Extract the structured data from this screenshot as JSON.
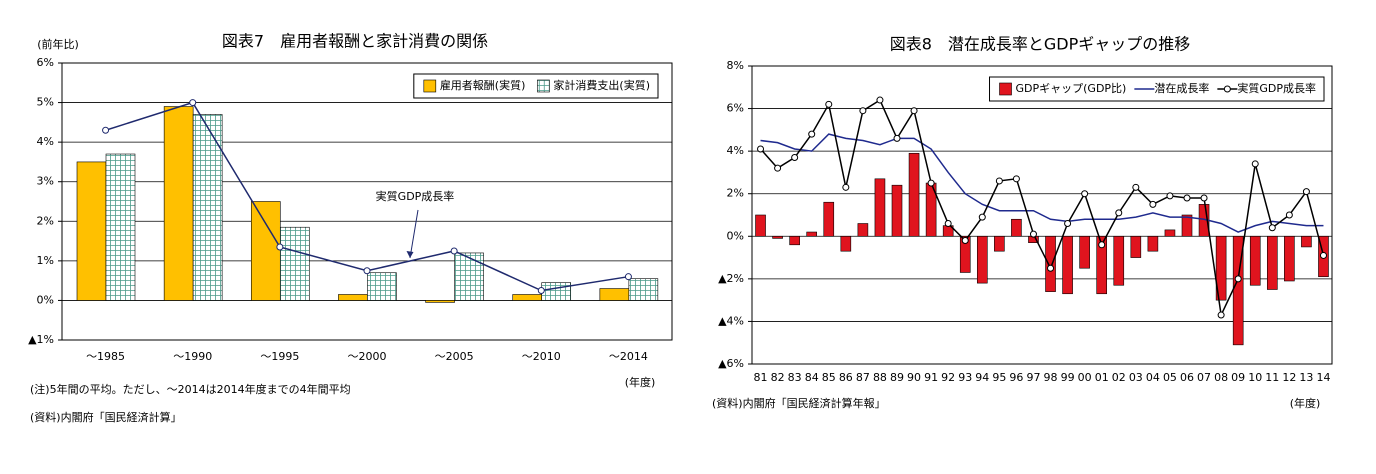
{
  "chart_data": [
    {
      "type": "bar",
      "title": "図表7　雇用者報酬と家計消費の関係",
      "y_label": "(前年比)",
      "categories": [
        "～1985",
        "～1990",
        "～1995",
        "～2000",
        "～2005",
        "～2010",
        "～2014"
      ],
      "series": [
        {
          "name": "雇用者報酬(実質)",
          "type": "bar",
          "color": "#ffc000",
          "values": [
            3.5,
            4.9,
            2.5,
            0.15,
            -0.05,
            0.15,
            0.3
          ]
        },
        {
          "name": "家計消費支出(実質)",
          "type": "bar",
          "color": "#4a9a8a",
          "pattern": "grid",
          "values": [
            3.7,
            4.7,
            1.85,
            0.7,
            1.2,
            0.45,
            0.55
          ]
        },
        {
          "name": "実質GDP成長率",
          "type": "line",
          "color": "#1f2a6e",
          "marker": true,
          "legend": false,
          "values": [
            4.3,
            5.0,
            1.35,
            0.75,
            1.25,
            0.25,
            0.6
          ]
        }
      ],
      "ylim": [
        -1,
        6
      ],
      "yticks": [
        {
          "value": -1,
          "label": "▲1%"
        },
        {
          "value": 0,
          "label": "0%"
        },
        {
          "value": 1,
          "label": "1%"
        },
        {
          "value": 2,
          "label": "2%"
        },
        {
          "value": 3,
          "label": "3%"
        },
        {
          "value": 4,
          "label": "4%"
        },
        {
          "value": 5,
          "label": "5%"
        },
        {
          "value": 6,
          "label": "6%"
        }
      ],
      "grid": true,
      "legend": "top-right",
      "notes": [
        "(注)5年間の平均。ただし、～2014は2014年度までの4年間平均",
        "(資料)内閣府「国民経済計算」"
      ],
      "x_unit": "(年度)"
    },
    {
      "type": "bar",
      "title": "図表8　潜在成長率とGDPギャップの推移",
      "categories": [
        "81",
        "82",
        "83",
        "84",
        "85",
        "86",
        "87",
        "88",
        "89",
        "90",
        "91",
        "92",
        "93",
        "94",
        "95",
        "96",
        "97",
        "98",
        "99",
        "00",
        "01",
        "02",
        "03",
        "04",
        "05",
        "06",
        "07",
        "08",
        "09",
        "10",
        "11",
        "12",
        "13",
        "14"
      ],
      "series": [
        {
          "name": "GDPギャップ(GDP比)",
          "type": "bar",
          "color": "#e0141e",
          "values": [
            1.0,
            -0.1,
            -0.4,
            0.2,
            1.6,
            -0.7,
            0.6,
            2.7,
            2.4,
            3.9,
            2.5,
            0.5,
            -1.7,
            -2.2,
            -0.7,
            0.8,
            -0.3,
            -2.6,
            -2.7,
            -1.5,
            -2.7,
            -2.3,
            -1.0,
            -0.7,
            0.3,
            1.0,
            1.5,
            -3.0,
            -5.1,
            -2.3,
            -2.5,
            -2.1,
            -0.5,
            -1.9
          ]
        },
        {
          "name": "潜在成長率",
          "type": "line",
          "color": "#1f2a8e",
          "marker": false,
          "values": [
            4.5,
            4.4,
            4.1,
            4.0,
            4.8,
            4.6,
            4.5,
            4.3,
            4.6,
            4.6,
            4.1,
            3.0,
            2.0,
            1.5,
            1.2,
            1.2,
            1.2,
            0.8,
            0.7,
            0.8,
            0.8,
            0.8,
            0.9,
            1.1,
            0.9,
            0.9,
            0.8,
            0.6,
            0.2,
            0.5,
            0.7,
            0.6,
            0.5,
            0.5
          ]
        },
        {
          "name": "実質GDP成長率",
          "type": "line",
          "color": "#000000",
          "marker": true,
          "values": [
            4.1,
            3.2,
            3.7,
            4.8,
            6.2,
            2.3,
            5.9,
            6.4,
            4.6,
            5.9,
            2.5,
            0.6,
            -0.2,
            0.9,
            2.6,
            2.7,
            0.1,
            -1.5,
            0.6,
            2.0,
            -0.4,
            1.1,
            2.3,
            1.5,
            1.9,
            1.8,
            1.8,
            -3.7,
            -2.0,
            3.4,
            0.4,
            1.0,
            2.1,
            -0.9
          ]
        }
      ],
      "ylim": [
        -6,
        8
      ],
      "yticks": [
        {
          "value": -6,
          "label": "▲6%"
        },
        {
          "value": -4,
          "label": "▲4%"
        },
        {
          "value": -2,
          "label": "▲2%"
        },
        {
          "value": 0,
          "label": "0%"
        },
        {
          "value": 2,
          "label": "2%"
        },
        {
          "value": 4,
          "label": "4%"
        },
        {
          "value": 6,
          "label": "6%"
        },
        {
          "value": 8,
          "label": "8%"
        }
      ],
      "grid": true,
      "legend": "top-right",
      "notes": [
        "(資料)内閣府「国民経済計算年報」"
      ],
      "x_unit": "(年度)"
    }
  ]
}
